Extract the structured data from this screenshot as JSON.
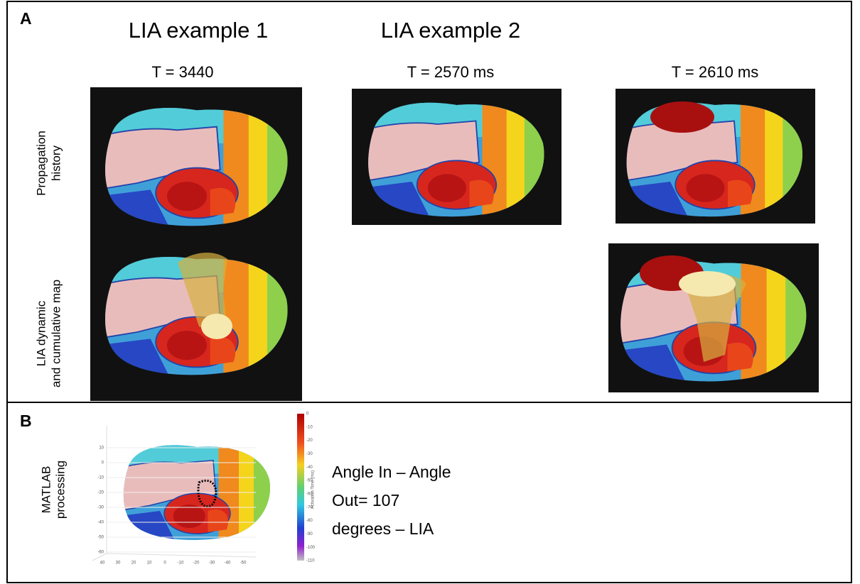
{
  "panel_a": {
    "label": "A",
    "columns": [
      "LIA example 1",
      "LIA example 2"
    ],
    "times": [
      "T = 3440",
      "T = 2570 ms",
      "T = 2610 ms"
    ],
    "rows": [
      [
        "Propagation",
        "history"
      ],
      [
        "LIA dynamic",
        "and cumulative map"
      ]
    ]
  },
  "panel_b": {
    "label": "B",
    "row_label": [
      "MATLAB",
      "processing"
    ],
    "result": [
      "Angle In – Angle",
      "Out= 107",
      "degrees – LIA"
    ],
    "plot": {
      "yticks": [
        10,
        0,
        -10,
        -20,
        -30,
        -40,
        -50,
        -60
      ],
      "xticks": [
        40,
        30,
        20,
        10,
        0,
        -10,
        -20,
        -30,
        -40,
        -50
      ],
      "colorbar_ticks": [
        0,
        -10,
        -20,
        -30,
        -40,
        -50,
        -60,
        -70,
        -80,
        -90,
        -100,
        -110
      ],
      "colorbar_label": "Activation Time (ms)"
    }
  }
}
